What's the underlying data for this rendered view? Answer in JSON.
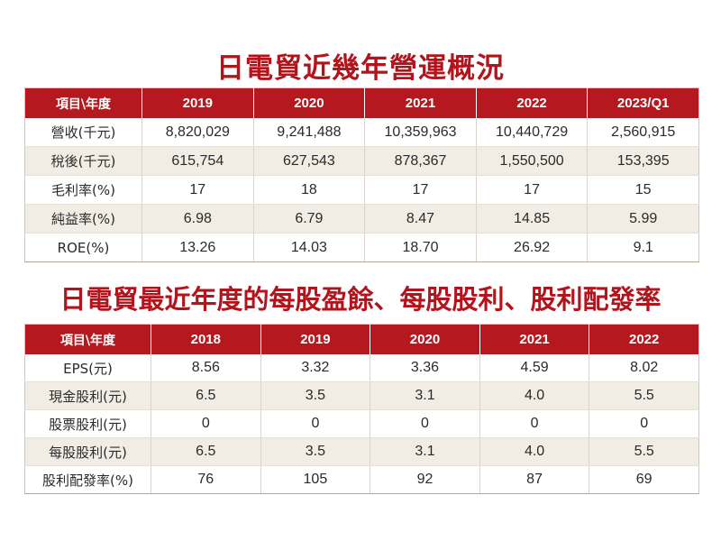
{
  "section1": {
    "title": "日電貿近幾年營運概況",
    "headers": [
      "項目\\年度",
      "2019",
      "2020",
      "2021",
      "2022",
      "2023/Q1"
    ],
    "rows": [
      {
        "label": "營收(千元)",
        "values": [
          "8,820,029",
          "9,241,488",
          "10,359,963",
          "10,440,729",
          "2,560,915"
        ]
      },
      {
        "label": "稅後(千元)",
        "values": [
          "615,754",
          "627,543",
          "878,367",
          "1,550,500",
          "153,395"
        ]
      },
      {
        "label": "毛利率(%)",
        "values": [
          "17",
          "18",
          "17",
          "17",
          "15"
        ]
      },
      {
        "label": "純益率(%)",
        "values": [
          "6.98",
          "6.79",
          "8.47",
          "14.85",
          "5.99"
        ]
      },
      {
        "label": "ROE(%)",
        "values": [
          "13.26",
          "14.03",
          "18.70",
          "26.92",
          "9.1"
        ]
      }
    ]
  },
  "section2": {
    "title": "日電貿最近年度的每股盈餘、每股股利、股利配發率",
    "headers": [
      "項目\\年度",
      "2018",
      "2019",
      "2020",
      "2021",
      "2022"
    ],
    "rows": [
      {
        "label": "EPS(元)",
        "values": [
          "8.56",
          "3.32",
          "3.36",
          "4.59",
          "8.02"
        ]
      },
      {
        "label": "現金股利(元)",
        "values": [
          "6.5",
          "3.5",
          "3.1",
          "4.0",
          "5.5"
        ]
      },
      {
        "label": "股票股利(元)",
        "values": [
          "0",
          "0",
          "0",
          "0",
          "0"
        ]
      },
      {
        "label": "每股股利(元)",
        "values": [
          "6.5",
          "3.5",
          "3.1",
          "4.0",
          "5.5"
        ]
      },
      {
        "label": "股利配發率(%)",
        "values": [
          "76",
          "105",
          "92",
          "87",
          "69"
        ]
      }
    ]
  }
}
